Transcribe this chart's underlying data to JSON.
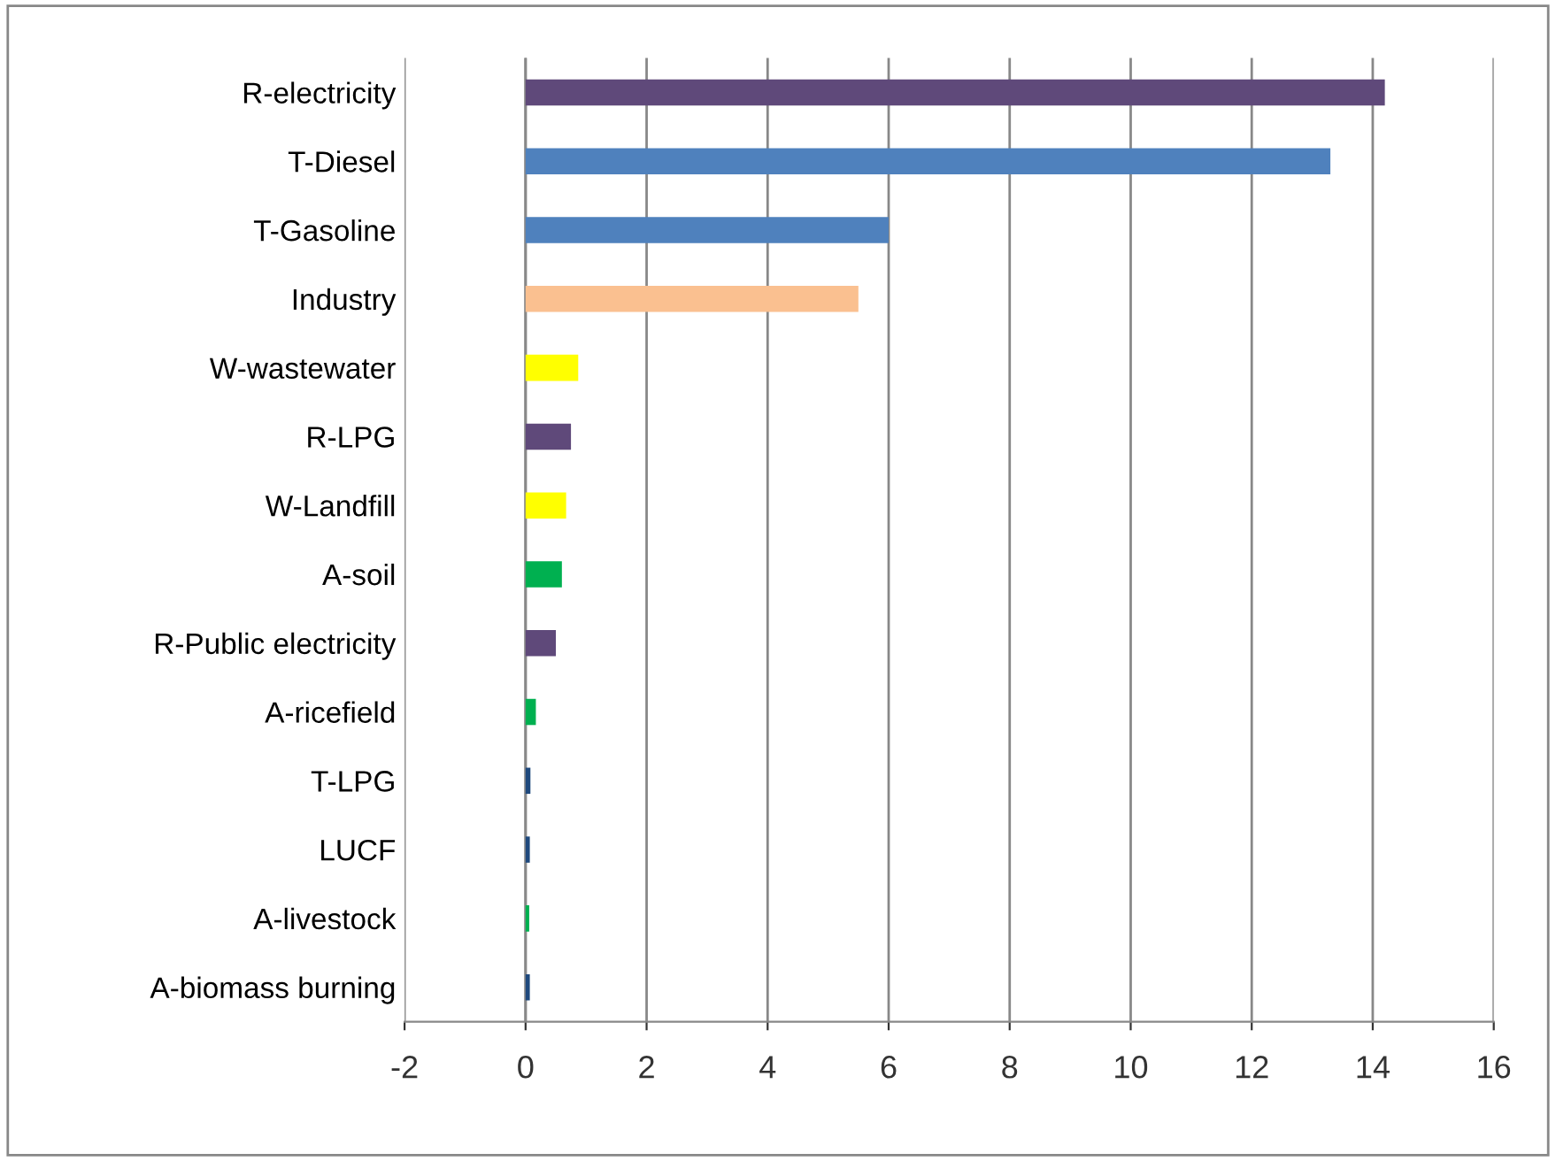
{
  "chart_data": {
    "type": "bar",
    "orientation": "horizontal",
    "categories": [
      "R-electricity",
      "T-Diesel",
      "T-Gasoline",
      "Industry",
      "W-wastewater",
      "R-LPG",
      "W-Landfill",
      "A-soil",
      "R-Public electricity",
      "A-ricefield",
      "T-LPG",
      "LUCF",
      "A-livestock",
      "A-biomass burning"
    ],
    "values": [
      14.2,
      13.3,
      6.0,
      5.5,
      0.87,
      0.75,
      0.67,
      0.6,
      0.5,
      0.17,
      0.08,
      0.07,
      0.06,
      0.07
    ],
    "colors": [
      "#5f497a",
      "#4f81bd",
      "#4f81bd",
      "#fac090",
      "#ffff00",
      "#5f497a",
      "#ffff00",
      "#00b050",
      "#5f497a",
      "#00b050",
      "#1f497d",
      "#1f497d",
      "#00b050",
      "#1f497d"
    ],
    "xlim": [
      -2,
      16
    ],
    "xticks": [
      -2,
      0,
      2,
      4,
      6,
      8,
      10,
      12,
      14,
      16
    ],
    "grid": "x"
  }
}
